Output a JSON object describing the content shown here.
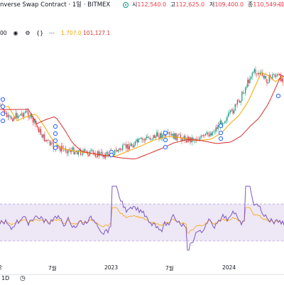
{
  "header": {
    "title": "nverse Swap Contract · 1일 · BITMEX",
    "ohlc": [
      {
        "key": "시",
        "value": "112,540.0"
      },
      {
        "key": "고",
        "value": "112,625.0"
      },
      {
        "key": "저",
        "value": "109,400.0"
      },
      {
        "key": "종",
        "value": "110,549.0"
      },
      {
        "key": "",
        "value": "−1,"
      }
    ]
  },
  "controls": {
    "left_value": "00",
    "ma_a": "1,707.0",
    "ma_b": "101,127.1"
  },
  "xaxis": {
    "labels": [
      "2",
      "7월",
      "2023",
      "7월",
      "2024"
    ]
  },
  "colors": {
    "candle_up": "#089981",
    "candle_down": "#f23645",
    "ma_orange": "#f7a600",
    "ma_red": "#d32f2f",
    "rsi_line": "#7e57c2",
    "rsi_band": "#ede7f6",
    "marker": "#2962ff"
  }
}
